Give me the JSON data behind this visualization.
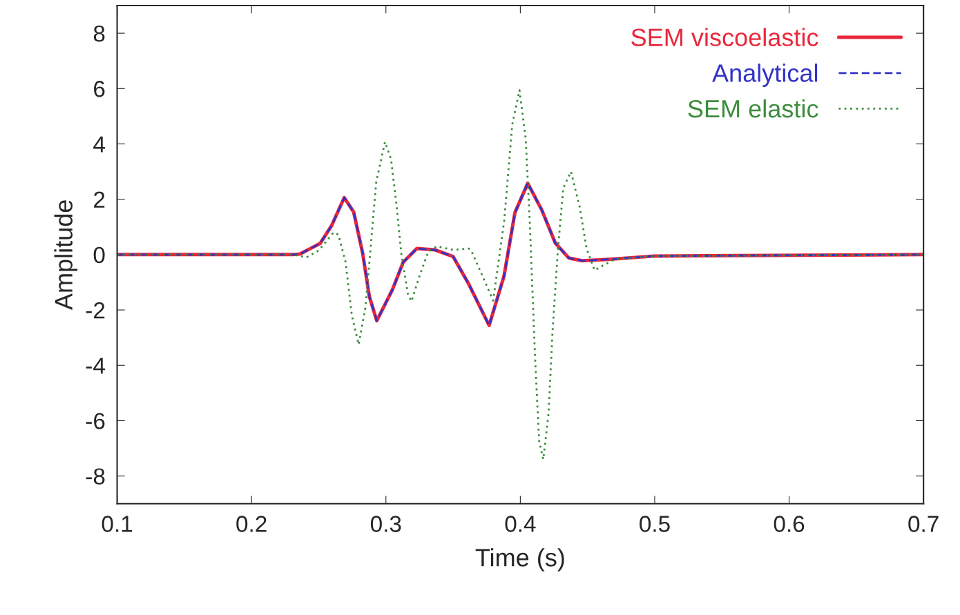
{
  "chart_data": {
    "type": "line",
    "xlabel": "Time (s)",
    "ylabel": "Amplitude",
    "xlim": [
      0.1,
      0.7
    ],
    "xticks": [
      0.1,
      0.2,
      0.3,
      0.4,
      0.5,
      0.6,
      0.7
    ],
    "ylim": [
      -9,
      9
    ],
    "yticks": [
      -8,
      -6,
      -4,
      -2,
      0,
      2,
      4,
      6,
      8
    ],
    "grid": false,
    "legend": "top right",
    "series": [
      {
        "name": "SEM viscoelastic",
        "color": "#e8283c",
        "line_style": "solid",
        "x": [
          0.1,
          0.231,
          0.236,
          0.243,
          0.251,
          0.2595,
          0.269,
          0.276,
          0.2827,
          0.2877,
          0.2932,
          0.3048,
          0.3129,
          0.323,
          0.3366,
          0.35,
          0.3617,
          0.3768,
          0.3879,
          0.396,
          0.4055,
          0.416,
          0.426,
          0.436,
          0.446,
          0.466,
          0.5,
          0.7
        ],
        "values": [
          0,
          0,
          0.02,
          0.2,
          0.4,
          1.04,
          2.06,
          1.54,
          0.05,
          -1.52,
          -2.39,
          -1.27,
          -0.27,
          0.22,
          0.17,
          -0.07,
          -1.07,
          -2.56,
          -0.77,
          1.52,
          2.58,
          1.61,
          0.42,
          -0.12,
          -0.22,
          -0.17,
          -0.05,
          0
        ]
      },
      {
        "name": "Analytical",
        "color": "#3232c8",
        "line_style": "dashed",
        "x": [
          0.1,
          0.231,
          0.236,
          0.243,
          0.251,
          0.2595,
          0.269,
          0.276,
          0.2827,
          0.2877,
          0.2932,
          0.3048,
          0.3129,
          0.323,
          0.3366,
          0.35,
          0.3617,
          0.3768,
          0.3879,
          0.396,
          0.4055,
          0.416,
          0.426,
          0.436,
          0.446,
          0.466,
          0.5,
          0.7
        ],
        "values": [
          0,
          0,
          0.02,
          0.2,
          0.4,
          1.04,
          2.06,
          1.54,
          0.05,
          -1.52,
          -2.39,
          -1.27,
          -0.27,
          0.22,
          0.17,
          -0.07,
          -1.07,
          -2.56,
          -0.77,
          1.52,
          2.58,
          1.61,
          0.42,
          -0.12,
          -0.22,
          -0.17,
          -0.05,
          0
        ]
      },
      {
        "name": "SEM elastic",
        "color": "#3c8c3c",
        "line_style": "dotted",
        "x": [
          0.1,
          0.231,
          0.241,
          0.25,
          0.261,
          0.2646,
          0.27,
          0.2746,
          0.2797,
          0.2847,
          0.2877,
          0.2928,
          0.2993,
          0.3038,
          0.3079,
          0.3114,
          0.3164,
          0.319,
          0.325,
          0.3315,
          0.338,
          0.35,
          0.3617,
          0.3637,
          0.3718,
          0.3798,
          0.388,
          0.394,
          0.3994,
          0.404,
          0.407,
          0.411,
          0.414,
          0.4171,
          0.421,
          0.424,
          0.428,
          0.432,
          0.4377,
          0.4442,
          0.4493,
          0.4553,
          0.4623,
          0.4704,
          0.5,
          0.7
        ],
        "values": [
          0,
          0,
          -0.1,
          0.15,
          0.8,
          0.72,
          -0.27,
          -2.18,
          -3.25,
          -1.93,
          -0.27,
          2.63,
          4.07,
          3.45,
          1.79,
          0.05,
          -1.44,
          -1.69,
          -0.77,
          0.1,
          0.3,
          0.17,
          0.22,
          0.12,
          -0.77,
          -1.66,
          1.22,
          4.7,
          5.94,
          4.2,
          1.22,
          -3.75,
          -6.73,
          -7.4,
          -5.74,
          -2.76,
          0.22,
          2.41,
          3.0,
          1.71,
          0.22,
          -0.57,
          -0.37,
          -0.17,
          -0.05,
          0
        ]
      }
    ]
  }
}
